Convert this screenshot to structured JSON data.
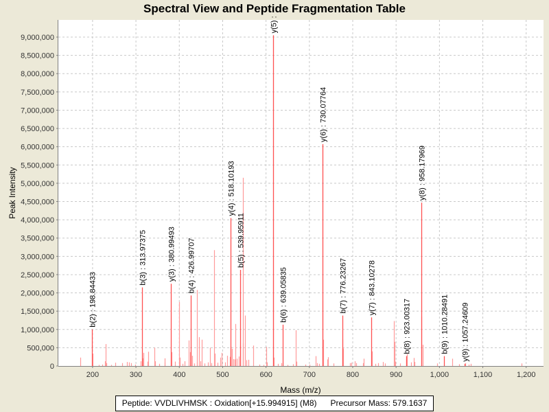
{
  "chart_data": {
    "type": "bar",
    "title": "Spectral View and Peptide Fragmentation Table",
    "xlabel": "Mass (m/z)",
    "ylabel": "Peak Intensity",
    "xlim": [
      121,
      1240
    ],
    "ylim": [
      0,
      9470000
    ],
    "grid": true,
    "x_ticks": [
      200,
      300,
      400,
      500,
      600,
      700,
      800,
      900,
      1000,
      1100,
      1200
    ],
    "x_tick_labels": [
      "200",
      "300",
      "400",
      "500",
      "600",
      "700",
      "800",
      "900",
      "1,000",
      "1,100",
      "1,200"
    ],
    "y_ticks": [
      0,
      500000,
      1000000,
      1500000,
      2000000,
      2500000,
      3000000,
      3500000,
      4000000,
      4500000,
      5000000,
      5500000,
      6000000,
      6500000,
      7000000,
      7500000,
      8000000,
      8500000,
      9000000
    ],
    "y_tick_labels": [
      "0",
      "500,000",
      "1,000,000",
      "1,500,000",
      "2,000,000",
      "2,500,000",
      "3,000,000",
      "3,500,000",
      "4,000,000",
      "4,500,000",
      "5,000,000",
      "5,500,000",
      "6,000,000",
      "6,500,000",
      "7,000,000",
      "7,500,000",
      "8,000,000",
      "8,500,000",
      "9,000,000"
    ],
    "annotated_peaks": [
      {
        "label": "b(2) : 198.84433",
        "mz": 198.84,
        "intensity": 1000000
      },
      {
        "label": "b(3) : 313.97375",
        "mz": 313.97,
        "intensity": 2150000
      },
      {
        "label": "y(3) : 380.99493",
        "mz": 380.99,
        "intensity": 2250000
      },
      {
        "label": "b(4) : 426.99707",
        "mz": 427.0,
        "intensity": 1930000
      },
      {
        "label": "y(4) : 518.10193",
        "mz": 518.1,
        "intensity": 4050000
      },
      {
        "label": "b(5) : 539.95911",
        "mz": 539.96,
        "intensity": 2630000
      },
      {
        "label": "y(5) :",
        "mz": 617.0,
        "intensity": 9050000
      },
      {
        "label": "b(6) : 639.05835",
        "mz": 639.06,
        "intensity": 1130000
      },
      {
        "label": "y(6) : 730.07764",
        "mz": 730.08,
        "intensity": 6070000
      },
      {
        "label": "b(7) : 776.23267",
        "mz": 776.23,
        "intensity": 1380000
      },
      {
        "label": "y(7) : 843.10278",
        "mz": 843.1,
        "intensity": 1330000
      },
      {
        "label": "b(8) : 923.00317",
        "mz": 923.0,
        "intensity": 270000
      },
      {
        "label": "y(8) : 958.17969",
        "mz": 958.18,
        "intensity": 4470000
      },
      {
        "label": "b(9) : 1010.28491",
        "mz": 1010.28,
        "intensity": 270000
      },
      {
        "label": "y(9) : 1057.24609",
        "mz": 1057.25,
        "intensity": 60000
      }
    ],
    "other_peaks": [
      [
        172,
        230000
      ],
      [
        200,
        340000
      ],
      [
        215,
        30000
      ],
      [
        222,
        40000
      ],
      [
        228,
        130000
      ],
      [
        230,
        600000
      ],
      [
        232,
        80000
      ],
      [
        243,
        30000
      ],
      [
        252,
        90000
      ],
      [
        268,
        80000
      ],
      [
        280,
        110000
      ],
      [
        284,
        100000
      ],
      [
        288,
        80000
      ],
      [
        298,
        40000
      ],
      [
        311,
        130000
      ],
      [
        316,
        210000
      ],
      [
        318,
        360000
      ],
      [
        326,
        120000
      ],
      [
        328,
        390000
      ],
      [
        342,
        500000
      ],
      [
        344,
        130000
      ],
      [
        354,
        60000
      ],
      [
        366,
        90000
      ],
      [
        367,
        210000
      ],
      [
        382,
        380000
      ],
      [
        390,
        120000
      ],
      [
        400,
        1750000
      ],
      [
        401,
        230000
      ],
      [
        408,
        60000
      ],
      [
        413,
        130000
      ],
      [
        422,
        700000
      ],
      [
        425,
        380000
      ],
      [
        429,
        280000
      ],
      [
        434,
        70000
      ],
      [
        440,
        100000
      ],
      [
        441,
        2080000
      ],
      [
        446,
        790000
      ],
      [
        449,
        130000
      ],
      [
        452,
        720000
      ],
      [
        458,
        70000
      ],
      [
        466,
        100000
      ],
      [
        471,
        500000
      ],
      [
        474,
        80000
      ],
      [
        480,
        3170000
      ],
      [
        482,
        340000
      ],
      [
        488,
        90000
      ],
      [
        494,
        230000
      ],
      [
        498,
        360000
      ],
      [
        505,
        100000
      ],
      [
        510,
        280000
      ],
      [
        516,
        250000
      ],
      [
        519,
        540000
      ],
      [
        521,
        470000
      ],
      [
        524,
        190000
      ],
      [
        527,
        180000
      ],
      [
        529,
        1150000
      ],
      [
        533,
        200000
      ],
      [
        537,
        260000
      ],
      [
        541,
        560000
      ],
      [
        546,
        5150000
      ],
      [
        547,
        620000
      ],
      [
        552,
        1380000
      ],
      [
        554,
        160000
      ],
      [
        560,
        170000
      ],
      [
        571,
        560000
      ],
      [
        584,
        40000
      ],
      [
        595,
        30000
      ],
      [
        600,
        520000
      ],
      [
        602,
        100000
      ],
      [
        616,
        2350000
      ],
      [
        618,
        230000
      ],
      [
        627,
        60000
      ],
      [
        635,
        80000
      ],
      [
        650,
        30000
      ],
      [
        662,
        50000
      ],
      [
        668,
        980000
      ],
      [
        671,
        120000
      ],
      [
        690,
        40000
      ],
      [
        700,
        40000
      ],
      [
        714,
        270000
      ],
      [
        717,
        80000
      ],
      [
        722,
        60000
      ],
      [
        731,
        1800000
      ],
      [
        732,
        720000
      ],
      [
        741,
        180000
      ],
      [
        743,
        240000
      ],
      [
        755,
        70000
      ],
      [
        777,
        730000
      ],
      [
        778,
        480000
      ],
      [
        793,
        80000
      ],
      [
        797,
        90000
      ],
      [
        805,
        130000
      ],
      [
        808,
        80000
      ],
      [
        824,
        80000
      ],
      [
        826,
        200000
      ],
      [
        844,
        400000
      ],
      [
        852,
        60000
      ],
      [
        858,
        80000
      ],
      [
        870,
        110000
      ],
      [
        874,
        70000
      ],
      [
        895,
        1230000
      ],
      [
        896,
        660000
      ],
      [
        898,
        120000
      ],
      [
        909,
        70000
      ],
      [
        923,
        200000
      ],
      [
        925,
        330000
      ],
      [
        934,
        100000
      ],
      [
        941,
        220000
      ],
      [
        943,
        110000
      ],
      [
        959,
        1350000
      ],
      [
        961,
        580000
      ],
      [
        995,
        70000
      ],
      [
        1030,
        200000
      ],
      [
        1045,
        50000
      ],
      [
        1060,
        80000
      ],
      [
        1068,
        40000
      ],
      [
        1073,
        60000
      ],
      [
        1190,
        70000
      ]
    ],
    "colors": {
      "peak": "#ff5050",
      "peak_light": "#ff9a9a",
      "grid": "#c8c8c8",
      "axis": "#808080"
    }
  },
  "legend": {
    "peptide_text": "Peptide: VVDLIVHMSK : Oxidation[+15.994915] (M8)",
    "precursor_text": "Precursor Mass: 579.1637"
  }
}
